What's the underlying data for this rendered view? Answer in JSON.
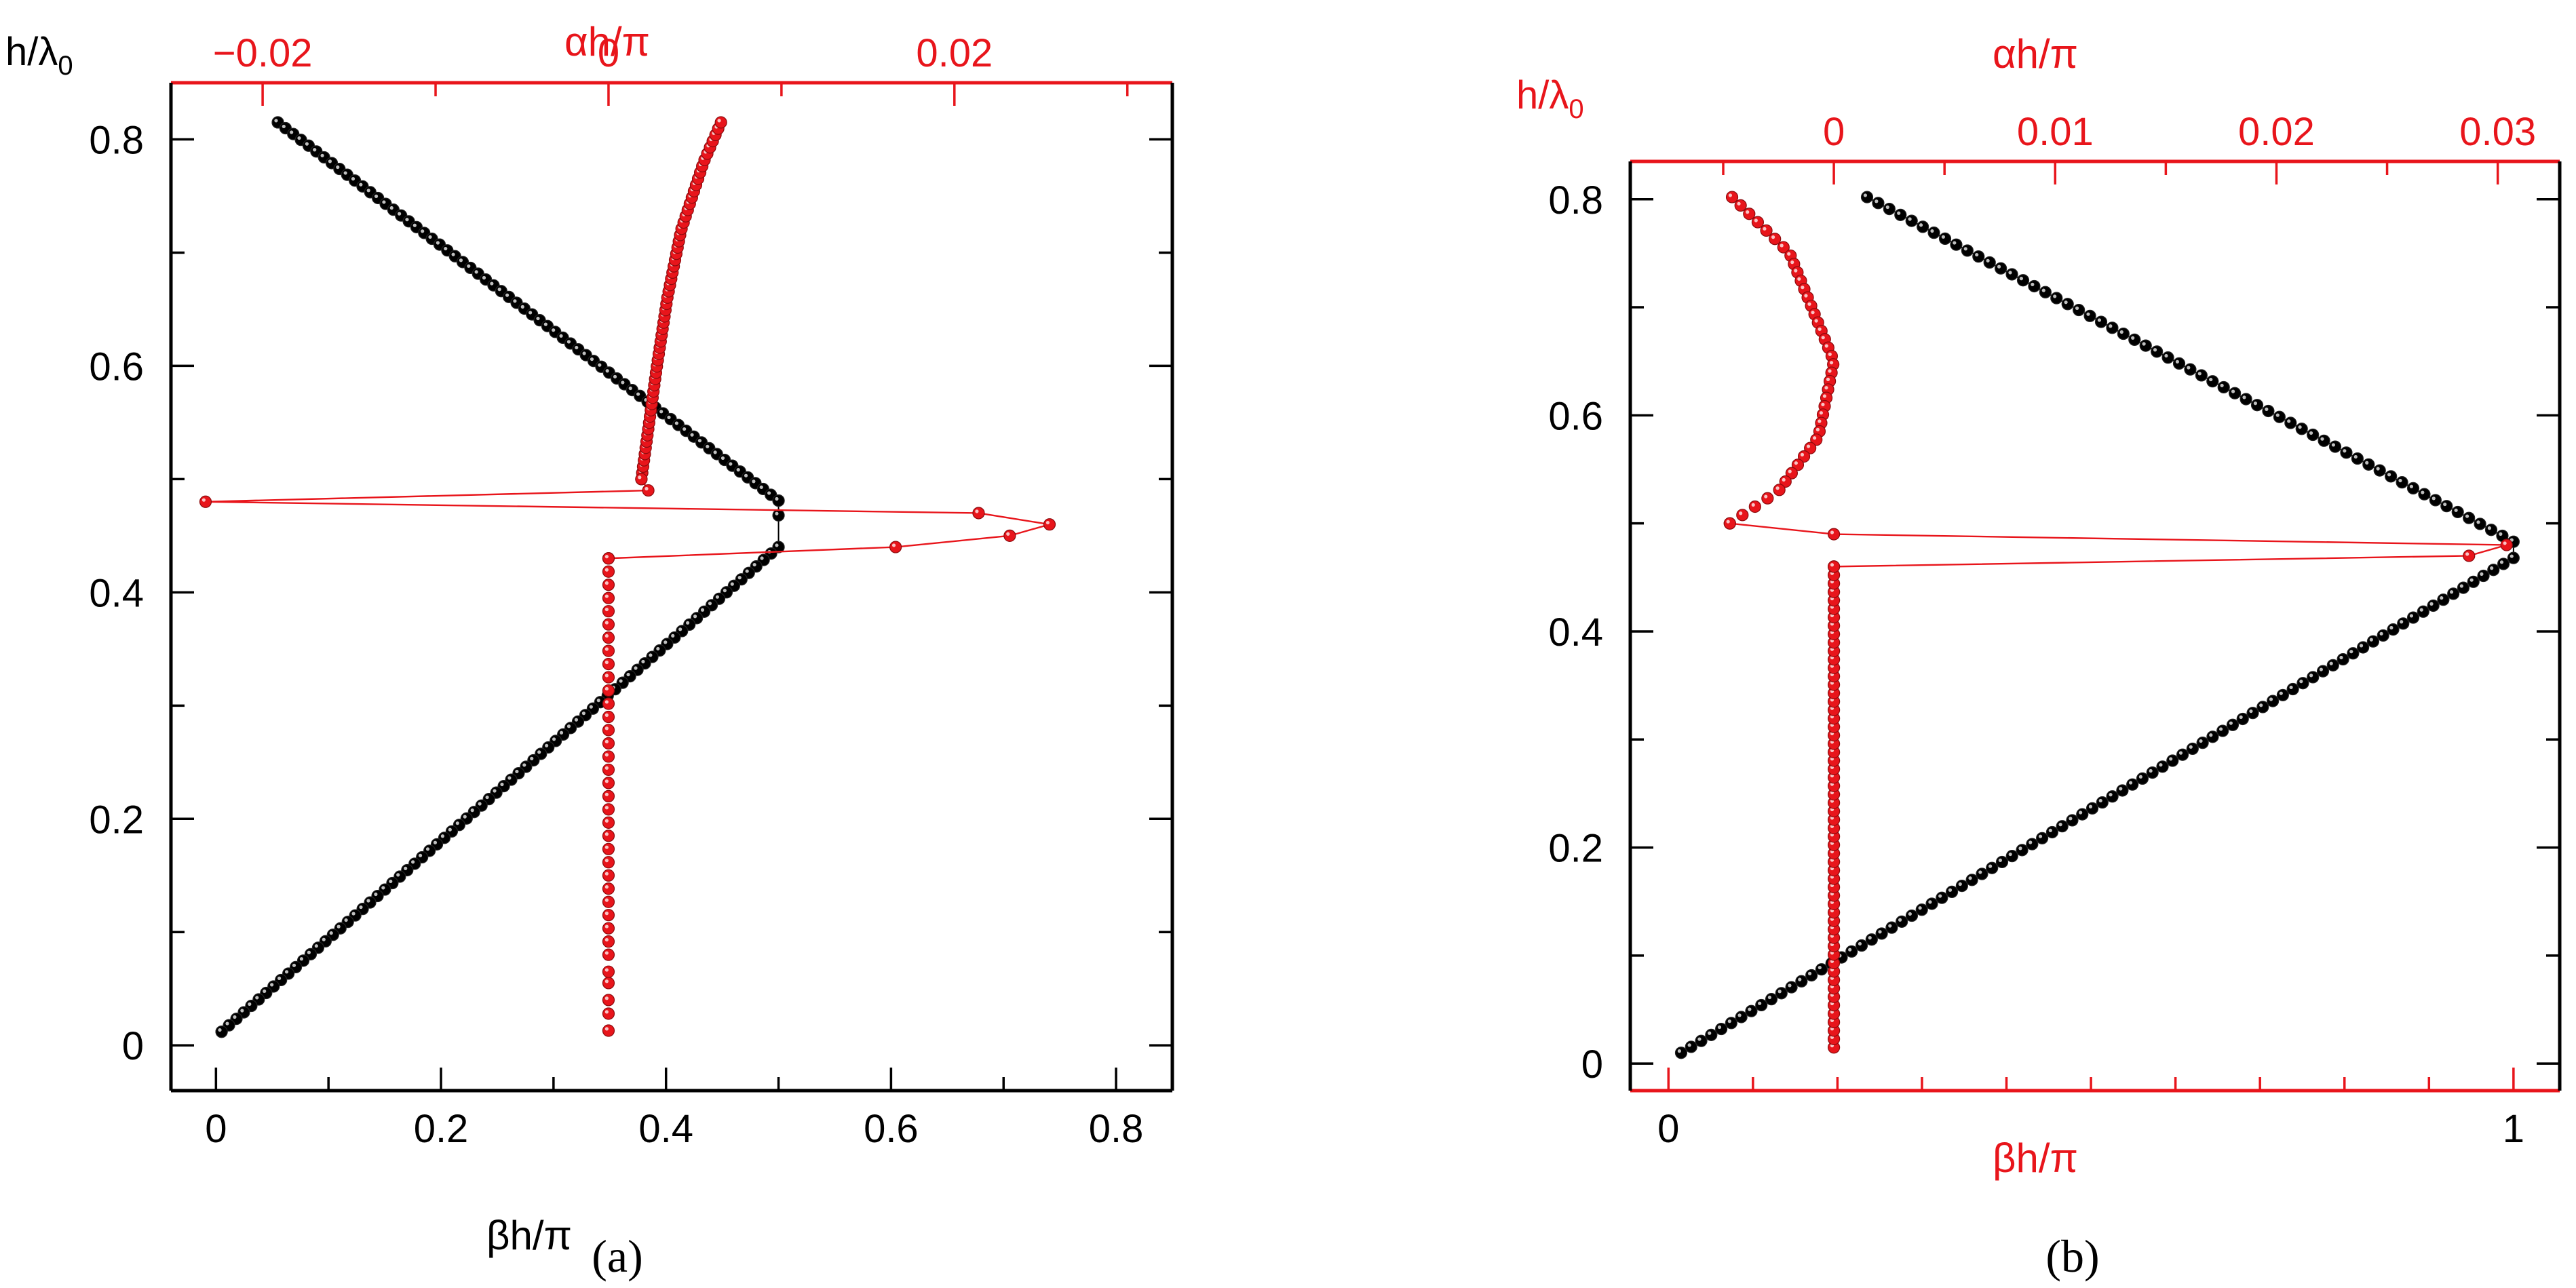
{
  "colors": {
    "red": "#e8151b",
    "black": "#000000"
  },
  "chart_data": [
    {
      "panel_label": "(a)",
      "type": "scatter",
      "ylabel": "h/λ0",
      "ylabel_main": "h/λ",
      "ylabel_sub": "0",
      "x_bottom": {
        "label": "βh/π",
        "color": "#000000",
        "range": [
          -0.04,
          0.85
        ],
        "ticks": [
          0,
          0.2,
          0.4,
          0.6,
          0.8
        ],
        "tick_labels": [
          "0",
          "0.2",
          "0.4",
          "0.6",
          "0.8"
        ],
        "minor_step": 0.1
      },
      "x_top": {
        "label": "αh/π",
        "color": "#e8151b",
        "range": [
          -0.0253,
          0.0326
        ],
        "ticks": [
          -0.02,
          0,
          0.02
        ],
        "tick_labels": [
          "−0.02",
          "0",
          "0.02"
        ],
        "minor_step": 0.01
      },
      "y": {
        "range": [
          -0.04,
          0.85
        ],
        "ticks": [
          0,
          0.2,
          0.4,
          0.6,
          0.8
        ],
        "tick_labels": [
          "0",
          "0.2",
          "0.4",
          "0.6",
          "0.8"
        ],
        "minor_step": 0.1
      },
      "series": [
        {
          "axis": "bottom",
          "color": "#000000",
          "points": [
            [
              0.055,
              0.815
            ],
            [
              0.5,
              0.481
            ],
            [
              0.5,
              0.468
            ],
            [
              0.5,
              0.44
            ],
            [
              0.005,
              0.012
            ]
          ],
          "segments": [
            [
              0.055,
              0.815,
              0.5,
              0.481,
              66
            ],
            [
              0.5,
              0.44,
              0.005,
              0.012,
              76
            ]
          ]
        },
        {
          "axis": "top",
          "color": "#e8151b",
          "points": [
            [
              0.0,
              0.013
            ],
            [
              0.0,
              0.028
            ],
            [
              0.0,
              0.04
            ],
            [
              0.0,
              0.055
            ],
            [
              0.0,
              0.065
            ]
          ],
          "segments": [
            [
              0.0,
              0.08,
              0.0,
              0.43,
              31
            ]
          ],
          "curve": [
            [
              0.0019,
              0.5
            ],
            [
              0.0028,
              0.6
            ],
            [
              0.0034,
              0.66
            ],
            [
              0.0042,
              0.72
            ],
            [
              0.0055,
              0.78
            ],
            [
              0.0065,
              0.815
            ]
          ],
          "curve_n": 58,
          "connected": [
            [
              0.0019,
              0.5
            ],
            [
              0.0023,
              0.49
            ],
            [
              -0.0233,
              0.48
            ],
            [
              0.0214,
              0.47
            ],
            [
              0.0255,
              0.46
            ],
            [
              0.0232,
              0.45
            ],
            [
              0.0166,
              0.44
            ],
            [
              0.0,
              0.43
            ]
          ]
        }
      ]
    },
    {
      "panel_label": "(b)",
      "type": "scatter",
      "ylabel": "h/λ0",
      "ylabel_main": "h/λ",
      "ylabel_sub": "0",
      "x_bottom": {
        "label": "βh/π",
        "color": "#e8151b",
        "range": [
          -0.0452,
          1.0547
        ],
        "ticks": [
          0,
          1
        ],
        "tick_labels": [
          "0",
          "1"
        ],
        "minor_step": 0.1
      },
      "x_top": {
        "label": "αh/π",
        "color": "#e8151b",
        "range": [
          -0.0092,
          0.0328
        ],
        "ticks": [
          0,
          0.01,
          0.02,
          0.03
        ],
        "tick_labels": [
          "0",
          "0.01",
          "0.02",
          "0.03"
        ],
        "minor_step": 0.005
      },
      "y": {
        "range": [
          -0.025,
          0.835
        ],
        "ticks": [
          0,
          0.2,
          0.4,
          0.6,
          0.8
        ],
        "tick_labels": [
          "0",
          "0.2",
          "0.4",
          "0.6",
          "0.8"
        ],
        "minor_step": 0.1
      },
      "series": [
        {
          "axis": "bottom",
          "color": "#000000",
          "points": [],
          "segments": [
            [
              0.235,
              0.802,
              1.0,
              0.483,
              59
            ],
            [
              1.0,
              0.468,
              0.015,
              0.01,
              84
            ]
          ]
        },
        {
          "axis": "top",
          "color": "#e8151b",
          "points": [],
          "segments": [
            [
              0.0,
              0.015,
              0.0,
              0.46,
              58
            ]
          ],
          "curve": [
            [
              -0.0046,
              0.802
            ],
            [
              -0.002,
              0.75
            ],
            [
              0.0,
              0.65
            ],
            [
              -0.0007,
              0.58
            ],
            [
              -0.0025,
              0.53
            ],
            [
              -0.0047,
              0.5
            ]
          ],
          "curve_n": 40,
          "connected": [
            [
              -0.0047,
              0.5
            ],
            [
              0.0,
              0.49
            ],
            [
              0.0304,
              0.48
            ],
            [
              0.0287,
              0.47
            ],
            [
              0.0,
              0.46
            ]
          ]
        }
      ]
    }
  ]
}
